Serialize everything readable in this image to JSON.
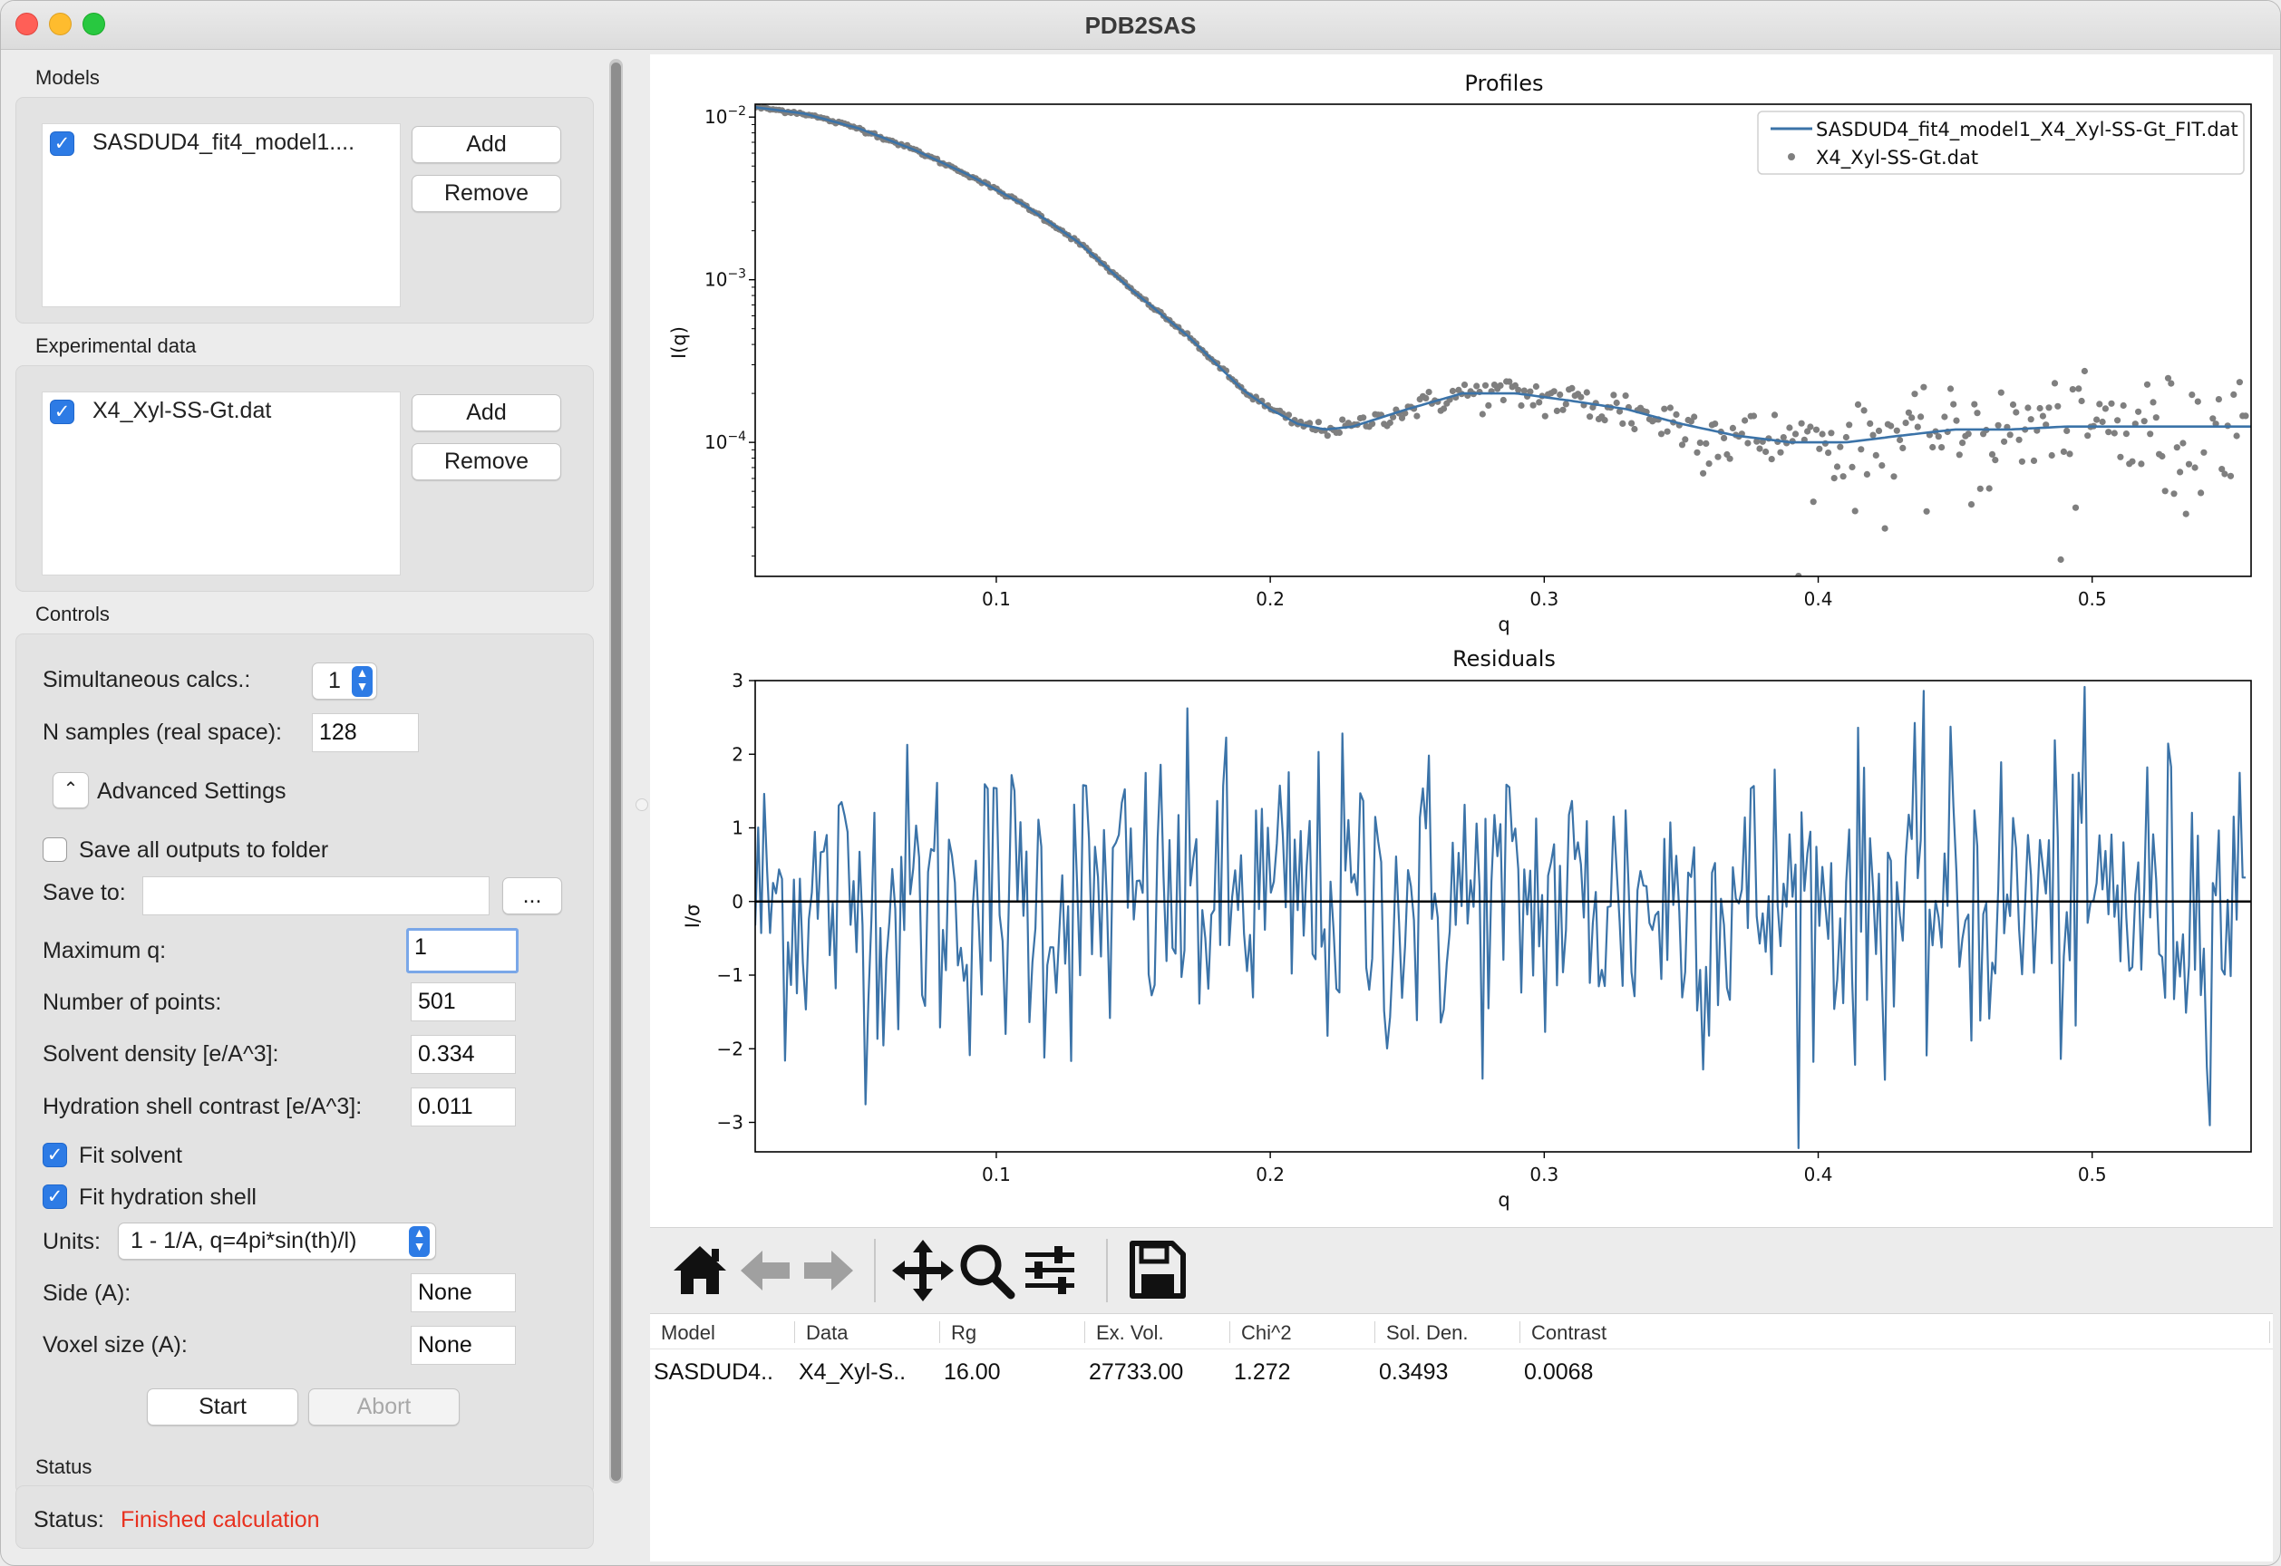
{
  "window": {
    "title": "PDB2SAS"
  },
  "models": {
    "section_label": "Models",
    "items": [
      {
        "label": "SASDUD4_fit4_model1....",
        "checked": true
      }
    ],
    "add_label": "Add",
    "remove_label": "Remove"
  },
  "experimental": {
    "section_label": "Experimental data",
    "items": [
      {
        "label": "X4_Xyl-SS-Gt.dat",
        "checked": true
      }
    ],
    "add_label": "Add",
    "remove_label": "Remove"
  },
  "controls": {
    "section_label": "Controls",
    "simultaneous_label": "Simultaneous calcs.:",
    "simultaneous_value": "1",
    "nsamples_label": "N samples (real space):",
    "nsamples_value": "128",
    "advanced_label": "Advanced Settings",
    "save_all_label": "Save all outputs to folder",
    "save_all_checked": false,
    "save_to_label": "Save to:",
    "save_to_value": "",
    "browse_label": "...",
    "maxq_label": "Maximum q:",
    "maxq_value": "1",
    "npoints_label": "Number of points:",
    "npoints_value": "501",
    "solvent_label": "Solvent density [e/A^3]:",
    "solvent_value": "0.334",
    "hydration_label": "Hydration shell contrast [e/A^3]:",
    "hydration_value": "0.011",
    "fit_solvent_label": "Fit solvent",
    "fit_solvent_checked": true,
    "fit_hydration_label": "Fit hydration shell",
    "fit_hydration_checked": true,
    "units_label": "Units:",
    "units_value": "1 - 1/A, q=4pi*sin(th)/l)",
    "side_label": "Side (A):",
    "side_value": "None",
    "voxel_label": "Voxel size (A):",
    "voxel_value": "None",
    "start_label": "Start",
    "abort_label": "Abort"
  },
  "status": {
    "section_label": "Status",
    "label": "Status:",
    "value": "Finished calculation",
    "value_color": "#e8311f"
  },
  "chart_data": [
    {
      "type": "scatter",
      "title": "Profiles",
      "xlabel": "q",
      "ylabel": "I(q)",
      "yscale": "log",
      "xlim": [
        0.012,
        0.558
      ],
      "ylim": [
        1.5e-05,
        0.012
      ],
      "xticks": [
        "0.1",
        "0.2",
        "0.3",
        "0.4",
        "0.5"
      ],
      "yticks": [
        {
          "value": 0.01,
          "base": "10",
          "exp": "−2"
        },
        {
          "value": 0.001,
          "base": "10",
          "exp": "−3"
        },
        {
          "value": 0.0001,
          "base": "10",
          "exp": "−4"
        }
      ],
      "legend_position": "top-right",
      "series": [
        {
          "name": "SASDUD4_fit4_model1_X4_Xyl-SS-Gt_FIT.dat",
          "kind": "line",
          "color": "#3b73a8",
          "x": [
            0.012,
            0.03,
            0.05,
            0.07,
            0.09,
            0.11,
            0.13,
            0.15,
            0.17,
            0.19,
            0.2,
            0.21,
            0.22,
            0.23,
            0.25,
            0.27,
            0.29,
            0.31,
            0.33,
            0.35,
            0.37,
            0.39,
            0.41,
            0.43,
            0.45,
            0.47,
            0.49,
            0.51,
            0.53,
            0.558
          ],
          "y": [
            0.0115,
            0.0105,
            0.0085,
            0.0063,
            0.0044,
            0.0029,
            0.0017,
            0.00085,
            0.00045,
            0.00021,
            0.00016,
            0.00013,
            0.00012,
            0.000125,
            0.00016,
            0.0002,
            0.0002,
            0.00018,
            0.00016,
            0.00013,
            0.00011,
            0.0001,
            0.0001,
            0.00011,
            0.00012,
            0.00012,
            0.000125,
            0.000125,
            0.000125,
            0.000125
          ]
        },
        {
          "name": "X4_Xyl-SS-Gt.dat",
          "kind": "points",
          "color": "#7f7f7f",
          "count": 501
        }
      ]
    },
    {
      "type": "line",
      "title": "Residuals",
      "xlabel": "q",
      "ylabel": "I/σ",
      "xlim": [
        0.012,
        0.558
      ],
      "ylim": [
        -3.4,
        3.0
      ],
      "xticks": [
        "0.1",
        "0.2",
        "0.3",
        "0.4",
        "0.5"
      ],
      "yticks": [
        "3",
        "2",
        "1",
        "0",
        "−1",
        "−2",
        "−3"
      ],
      "series": [
        {
          "kind": "line",
          "color": "#3b73a8",
          "count": 501
        }
      ],
      "zero_line_color": "#000000"
    }
  ],
  "toolbar": {
    "icons": [
      "home-icon",
      "back-arrow-icon",
      "forward-arrow-icon",
      "pan-icon",
      "zoom-icon",
      "configure-subplots-icon",
      "save-icon"
    ]
  },
  "results_table": {
    "columns": [
      "Model",
      "Data",
      "Rg",
      "Ex. Vol.",
      "Chi^2",
      "Sol. Den.",
      "Contrast"
    ],
    "rows": [
      [
        "SASDUD4..",
        "X4_Xyl-S..",
        "16.00",
        "27733.00",
        "1.272",
        "0.3493",
        "0.0068"
      ]
    ]
  }
}
